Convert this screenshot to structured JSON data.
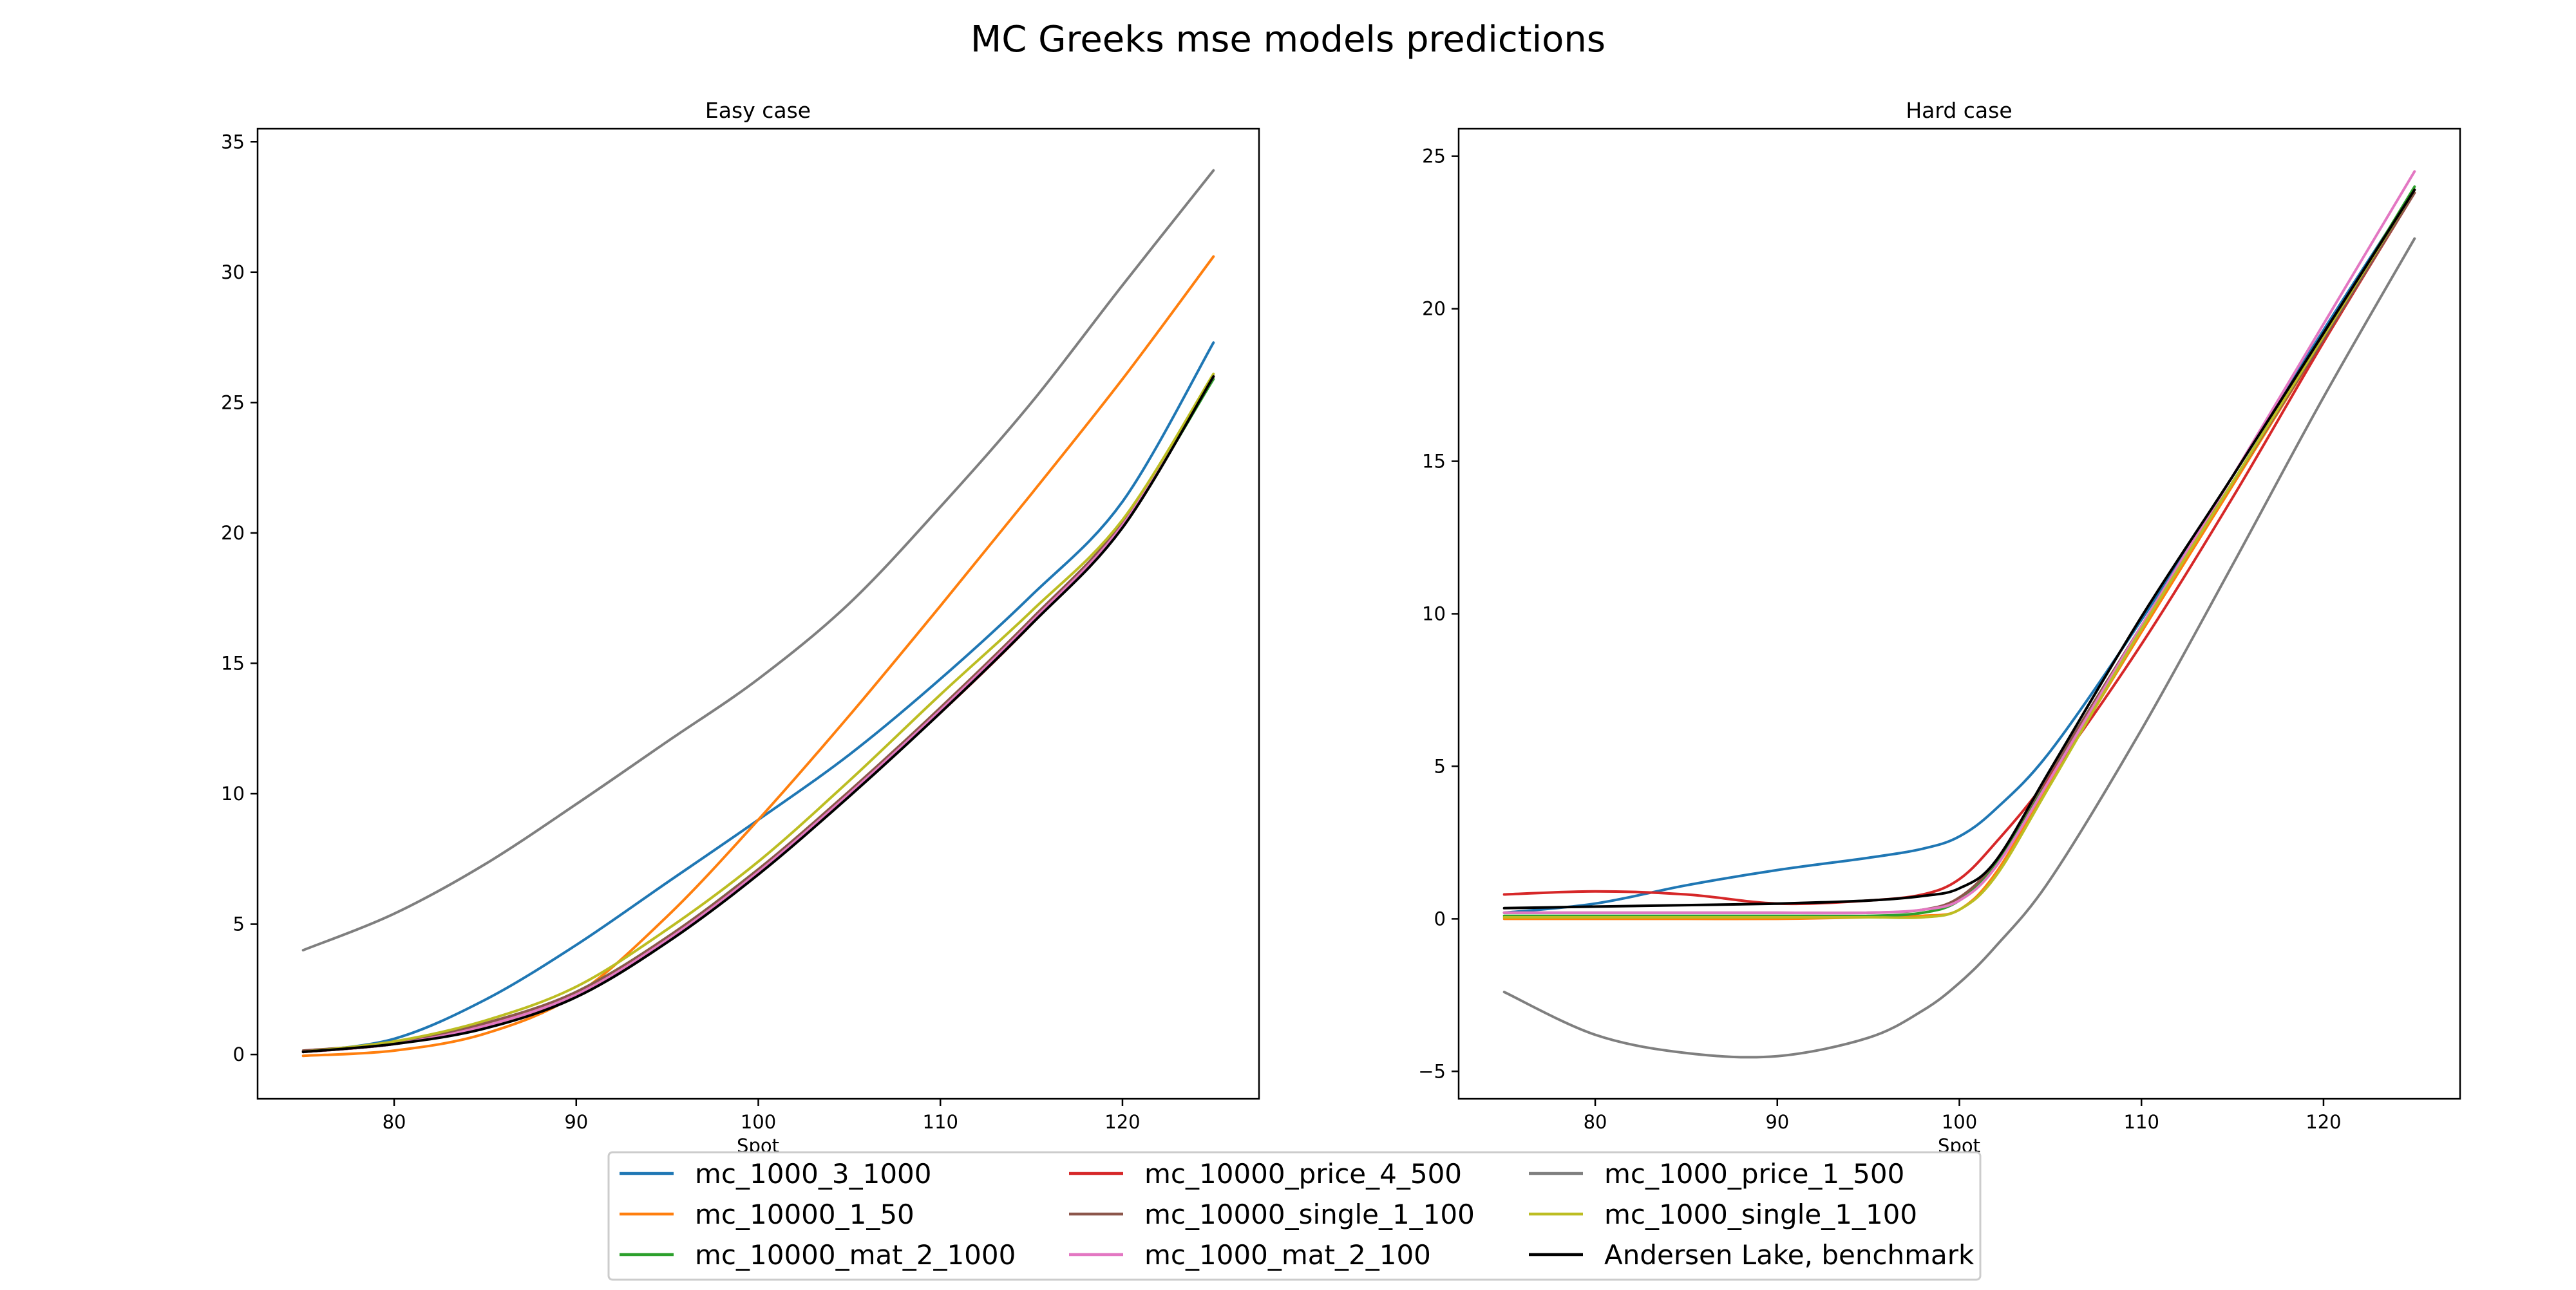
{
  "figure": {
    "suptitle": "MC Greeks mse models predictions"
  },
  "legend": {
    "entries": [
      {
        "name": "mc_1000_3_1000",
        "color": "#1f77b4"
      },
      {
        "name": "mc_10000_1_50",
        "color": "#ff7f0e"
      },
      {
        "name": "mc_10000_mat_2_1000",
        "color": "#2ca02c"
      },
      {
        "name": "mc_10000_price_4_500",
        "color": "#d62728"
      },
      {
        "name": "mc_10000_single_1_100",
        "color": "#8c564b"
      },
      {
        "name": "mc_1000_mat_2_100",
        "color": "#e377c2"
      },
      {
        "name": "mc_1000_price_1_500",
        "color": "#7f7f7f"
      },
      {
        "name": "mc_1000_single_1_100",
        "color": "#bcbd22"
      },
      {
        "name": "Andersen Lake, benchmark",
        "color": "#000000"
      }
    ],
    "placement": "bottom-center",
    "columns": 3
  },
  "chart_data": [
    {
      "type": "line",
      "title": "Easy case",
      "xlabel": "Spot",
      "ylabel": "",
      "xlim": [
        72.5,
        127.5
      ],
      "ylim": [
        -1.7,
        35.5
      ],
      "xticks": [
        80,
        90,
        100,
        110,
        120
      ],
      "yticks": [
        0,
        5,
        10,
        15,
        20,
        25,
        30,
        35
      ],
      "grid": false,
      "x": [
        75,
        80,
        85,
        90,
        95,
        100,
        105,
        110,
        115,
        120,
        125
      ],
      "series": [
        {
          "name": "mc_1000_3_1000",
          "color": "#1f77b4",
          "values": [
            0.1,
            0.6,
            2.1,
            4.2,
            6.6,
            9.0,
            11.5,
            14.4,
            17.6,
            21.2,
            27.3
          ]
        },
        {
          "name": "mc_10000_1_50",
          "color": "#ff7f0e",
          "values": [
            -0.05,
            0.15,
            0.8,
            2.3,
            5.3,
            9.0,
            13.0,
            17.2,
            21.5,
            25.9,
            30.6
          ]
        },
        {
          "name": "mc_10000_mat_2_1000",
          "color": "#2ca02c",
          "values": [
            0.1,
            0.4,
            1.1,
            2.4,
            4.5,
            7.1,
            10.0,
            13.2,
            16.5,
            20.3,
            25.9
          ]
        },
        {
          "name": "mc_10000_price_4_500",
          "color": "#d62728",
          "values": [
            0.1,
            0.4,
            1.1,
            2.3,
            4.4,
            7.0,
            10.0,
            13.1,
            16.5,
            20.3,
            26.0
          ]
        },
        {
          "name": "mc_10000_single_1_100",
          "color": "#8c564b",
          "values": [
            0.15,
            0.45,
            1.2,
            2.4,
            4.5,
            7.1,
            10.1,
            13.3,
            16.7,
            20.4,
            26.0
          ]
        },
        {
          "name": "mc_1000_mat_2_100",
          "color": "#e377c2",
          "values": [
            0.1,
            0.4,
            1.1,
            2.3,
            4.4,
            7.0,
            10.0,
            13.2,
            16.6,
            20.3,
            26.0
          ]
        },
        {
          "name": "mc_1000_price_1_500",
          "color": "#7f7f7f",
          "values": [
            4.0,
            5.4,
            7.3,
            9.6,
            12.0,
            14.4,
            17.3,
            21.0,
            25.0,
            29.5,
            33.9
          ]
        },
        {
          "name": "mc_1000_single_1_100",
          "color": "#bcbd22",
          "values": [
            0.1,
            0.5,
            1.3,
            2.6,
            4.8,
            7.4,
            10.5,
            13.8,
            17.0,
            20.5,
            26.1
          ]
        },
        {
          "name": "Andersen Lake, benchmark",
          "color": "#000000",
          "values": [
            0.1,
            0.4,
            1.0,
            2.2,
            4.3,
            6.9,
            9.9,
            13.1,
            16.5,
            20.2,
            26.0
          ]
        }
      ]
    },
    {
      "type": "line",
      "title": "Hard case",
      "xlabel": "Spot",
      "ylabel": "",
      "xlim": [
        72.5,
        127.5
      ],
      "ylim": [
        -5.9,
        25.9
      ],
      "xticks": [
        80,
        90,
        100,
        110,
        120
      ],
      "yticks": [
        -5,
        0,
        5,
        10,
        15,
        20,
        25
      ],
      "grid": false,
      "x": [
        75,
        80,
        85,
        90,
        95,
        98,
        100,
        102,
        105,
        110,
        115,
        120,
        125
      ],
      "series": [
        {
          "name": "mc_1000_3_1000",
          "color": "#1f77b4",
          "values": [
            0.2,
            0.5,
            1.1,
            1.6,
            2.0,
            2.3,
            2.7,
            3.6,
            5.5,
            9.8,
            14.5,
            19.3,
            23.9
          ]
        },
        {
          "name": "mc_10000_1_50",
          "color": "#ff7f0e",
          "values": [
            0.0,
            0.0,
            0.0,
            0.0,
            0.05,
            0.1,
            0.3,
            1.5,
            4.5,
            9.4,
            14.2,
            19.0,
            23.9
          ]
        },
        {
          "name": "mc_10000_mat_2_1000",
          "color": "#2ca02c",
          "values": [
            0.1,
            0.1,
            0.1,
            0.1,
            0.1,
            0.2,
            0.6,
            1.8,
            4.7,
            9.6,
            14.3,
            19.1,
            24.0
          ]
        },
        {
          "name": "mc_10000_price_4_500",
          "color": "#d62728",
          "values": [
            0.8,
            0.9,
            0.8,
            0.5,
            0.6,
            0.8,
            1.3,
            2.5,
            4.7,
            9.0,
            13.8,
            18.9,
            23.8
          ]
        },
        {
          "name": "mc_10000_single_1_100",
          "color": "#8c564b",
          "values": [
            0.2,
            0.2,
            0.2,
            0.2,
            0.2,
            0.3,
            0.7,
            1.9,
            4.8,
            9.6,
            14.3,
            19.0,
            23.8
          ]
        },
        {
          "name": "mc_1000_mat_2_100",
          "color": "#e377c2",
          "values": [
            0.2,
            0.2,
            0.2,
            0.2,
            0.2,
            0.3,
            0.6,
            1.7,
            4.6,
            9.6,
            14.5,
            19.5,
            24.5
          ]
        },
        {
          "name": "mc_1000_price_1_500",
          "color": "#7f7f7f",
          "values": [
            -2.4,
            -3.8,
            -4.4,
            -4.5,
            -3.9,
            -3.0,
            -2.1,
            -0.9,
            1.3,
            6.2,
            11.6,
            17.1,
            22.3
          ]
        },
        {
          "name": "mc_1000_single_1_100",
          "color": "#bcbd22",
          "values": [
            0.05,
            0.05,
            0.05,
            0.05,
            0.05,
            0.05,
            0.3,
            1.4,
            4.4,
            9.5,
            14.3,
            19.1,
            23.9
          ]
        },
        {
          "name": "Andersen Lake, benchmark",
          "color": "#000000",
          "values": [
            0.35,
            0.4,
            0.45,
            0.5,
            0.6,
            0.75,
            1.0,
            1.9,
            4.9,
            9.9,
            14.5,
            19.2,
            23.9
          ]
        }
      ]
    }
  ]
}
